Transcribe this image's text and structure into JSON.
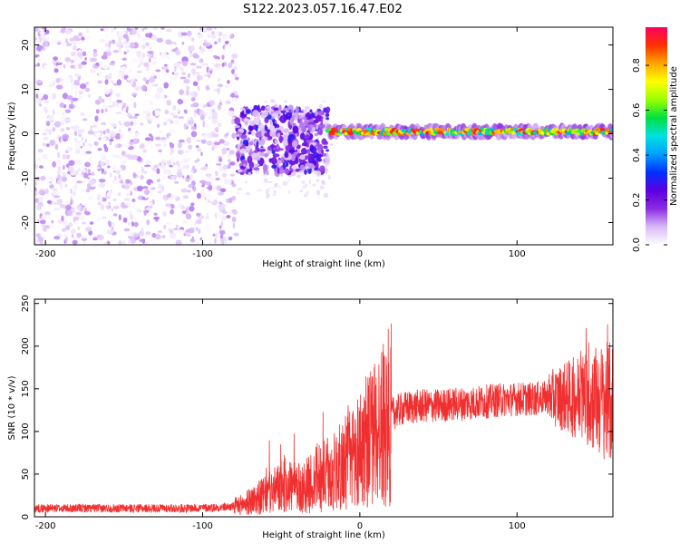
{
  "title": "S122.2023.057.16.47.E02",
  "chart_data": [
    {
      "type": "heatmap",
      "title": "S122.2023.057.16.47.E02",
      "xlabel": "Height of straight line (km)",
      "ylabel": "Frequency (Hz)",
      "xlim": [
        -207,
        161
      ],
      "ylim": [
        -25,
        24
      ],
      "xticks": [
        -200,
        -100,
        0,
        100
      ],
      "yticks": [
        -20,
        -10,
        0,
        10,
        20
      ],
      "colorbar": {
        "label": "Normalized spectral amplitude",
        "range": [
          0,
          0.97
        ],
        "ticks": [
          0.0,
          0.2,
          0.4,
          0.6,
          0.8
        ],
        "colormap": [
          "#ffffff",
          "#d8b8f8",
          "#8a2be2",
          "#5a00e0",
          "#0030ff",
          "#00a0ff",
          "#00e0e0",
          "#00e040",
          "#9aff00",
          "#ffff00",
          "#ffa500",
          "#ff3000",
          "#ff0060"
        ]
      },
      "regions": [
        {
          "x_range": [
            -207,
            -78
          ],
          "freq_range": [
            -25,
            24
          ],
          "amplitude_range": [
            0.0,
            0.12
          ],
          "description": "broadband noise"
        },
        {
          "x_range": [
            -78,
            -20
          ],
          "freq_range": [
            -9,
            6
          ],
          "amplitude_range": [
            0.05,
            0.3
          ]
        },
        {
          "x_range": [
            -20,
            161
          ],
          "freq_center": 0.5,
          "freq_halfwidth": 1.2,
          "amplitude_range": [
            0.4,
            0.97
          ]
        }
      ]
    },
    {
      "type": "line",
      "xlabel": "Height of straight line (km)",
      "ylabel": "SNR (10 * v/v)",
      "xlim": [
        -207,
        161
      ],
      "ylim": [
        0,
        255
      ],
      "xticks": [
        -200,
        -100,
        0,
        100
      ],
      "yticks": [
        0,
        50,
        100,
        150,
        200,
        250
      ],
      "color": "#f03030",
      "series": [
        {
          "x": [
            -207,
            -190,
            -170,
            -150,
            -130,
            -110,
            -90,
            -80,
            -75,
            -70,
            -65,
            -60,
            -55,
            -50,
            -45,
            -40,
            -35,
            -30,
            -25,
            -20,
            -15,
            -10,
            -5,
            0,
            5,
            10,
            15,
            20,
            25,
            30,
            40,
            50,
            60,
            70,
            80,
            90,
            100,
            110,
            120,
            130,
            140,
            150,
            155,
            161
          ],
          "values": [
            10,
            10,
            10,
            10,
            10,
            10,
            11,
            12,
            14,
            18,
            22,
            25,
            30,
            35,
            38,
            32,
            35,
            40,
            50,
            45,
            55,
            60,
            70,
            80,
            90,
            100,
            110,
            120,
            125,
            128,
            130,
            130,
            132,
            133,
            135,
            137,
            138,
            138,
            140,
            140,
            140,
            138,
            135,
            132
          ]
        }
      ]
    }
  ]
}
